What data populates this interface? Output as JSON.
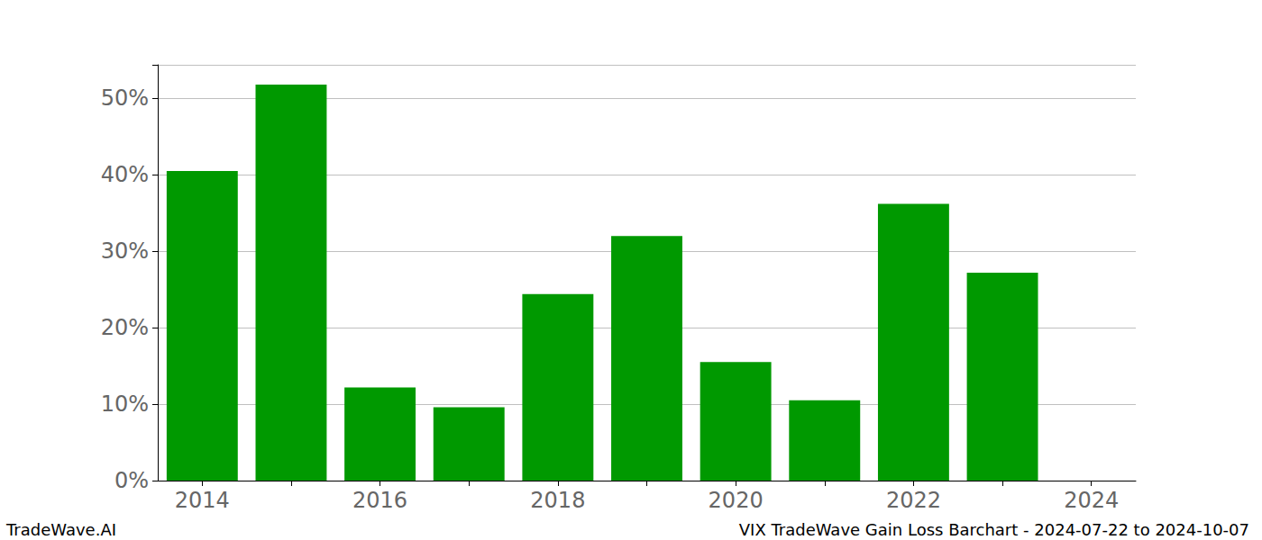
{
  "chart_data": {
    "type": "bar",
    "title": "VIX TradeWave Gain Loss Barchart - 2024-07-22 to 2024-10-07",
    "annotations": [
      "TradeWave.AI"
    ],
    "categories": [
      "2014",
      null,
      "2016",
      null,
      "2018",
      null,
      "2020",
      null,
      "2022",
      null,
      "2024"
    ],
    "values": [
      40.5,
      51.8,
      12.2,
      9.6,
      24.4,
      32.0,
      15.5,
      10.5,
      36.2,
      27.2,
      null
    ],
    "color": "#009900",
    "ylim": [
      0,
      54.4
    ],
    "yticks": [
      {
        "value": 0,
        "label": "0%"
      },
      {
        "value": 10,
        "label": "10%"
      },
      {
        "value": 20,
        "label": "20%"
      },
      {
        "value": 30,
        "label": "30%"
      },
      {
        "value": 40,
        "label": "40%"
      },
      {
        "value": 50,
        "label": "50%"
      }
    ],
    "grid": true
  }
}
